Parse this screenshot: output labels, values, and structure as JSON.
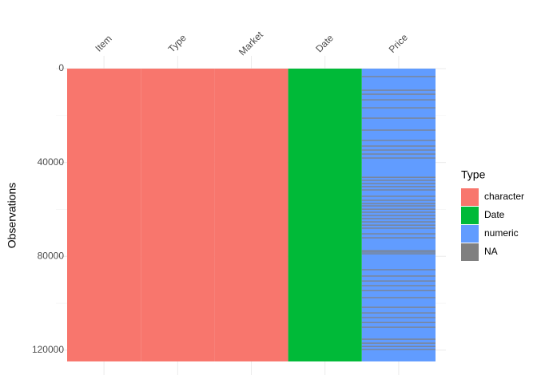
{
  "chart_data": {
    "type": "vis_dat",
    "y_label": "Observations",
    "columns": [
      {
        "name": "Item",
        "type": "character"
      },
      {
        "name": "Type",
        "type": "character"
      },
      {
        "name": "Market",
        "type": "character"
      },
      {
        "name": "Date",
        "type": "Date"
      },
      {
        "name": "Price",
        "type": "numeric"
      }
    ],
    "observations": 124800,
    "na_rows": {
      "column": "Price",
      "rows": [
        3400,
        9200,
        10900,
        13300,
        16700,
        21100,
        26200,
        30600,
        33000,
        34700,
        36400,
        38100,
        46300,
        47600,
        49000,
        50300,
        51700,
        54400,
        56100,
        57500,
        58500,
        59900,
        61200,
        62600,
        63900,
        65300,
        66700,
        68000,
        70400,
        72100,
        77600,
        78200,
        78900,
        85700,
        88400,
        90500,
        92500,
        94600,
        97600,
        101700,
        104100,
        106100,
        108200,
        110200,
        115300,
        117000,
        118400,
        119700
      ]
    },
    "ylim": [
      0,
      124800
    ],
    "yticks": [
      0,
      40000,
      80000,
      120000
    ],
    "grid": true,
    "legend": {
      "title": "Type",
      "position": "right",
      "entries": [
        {
          "name": "character",
          "color": "#F8766D"
        },
        {
          "name": "Date",
          "color": "#00BA38"
        },
        {
          "name": "numeric",
          "color": "#619CFF"
        },
        {
          "name": "NA",
          "color": "#808080"
        }
      ]
    }
  }
}
